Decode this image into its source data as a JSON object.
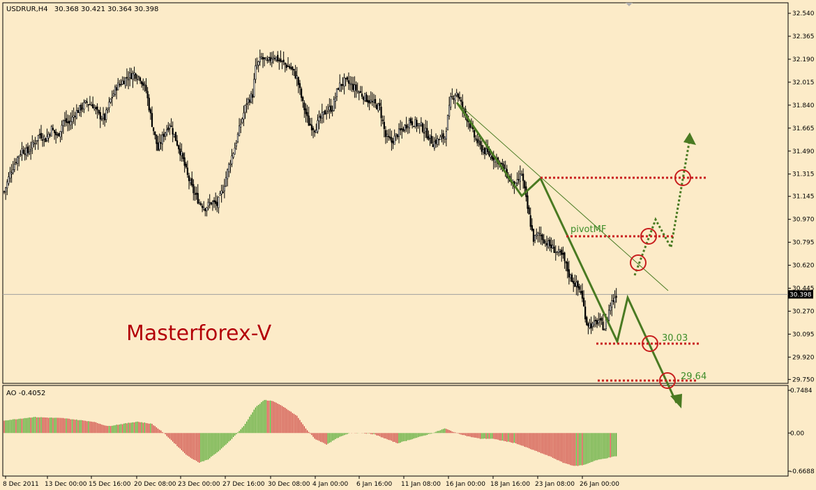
{
  "header": {
    "symbol": "USDRUR,H4",
    "ohlc": "30.368 30.421 30.364 30.398"
  },
  "watermark": "Masterforex-V",
  "colors": {
    "background": "#FCEBC8",
    "grid": "#C8C8C8",
    "bull_candle": "#FFFFFF",
    "bear_candle": "#000000",
    "wick": "#000000",
    "watermark": "#B40000",
    "level_line": "#C81E1E",
    "circle": "#C81E1E",
    "projection": "#4A7A22",
    "trendline": "#4A7A22",
    "label_green": "#3C8C28",
    "ao_up": "#3CA01E",
    "ao_down": "#C83232",
    "price_tag_bg": "#000000",
    "price_tag_fg": "#FFFFFF"
  },
  "price_axis": {
    "ticks": [
      "32.540",
      "32.365",
      "32.190",
      "32.015",
      "31.840",
      "31.665",
      "31.490",
      "31.315",
      "31.145",
      "30.970",
      "30.795",
      "30.620",
      "30.445",
      "30.270",
      "30.095",
      "29.920",
      "29.750"
    ],
    "current": "30.398"
  },
  "time_axis": {
    "labels": [
      "8 Dec 2011",
      "13 Dec 00:00",
      "15 Dec 16:00",
      "20 Dec 08:00",
      "23 Dec 00:00",
      "27 Dec 16:00",
      "30 Dec 08:00",
      "4 Jan 00:00",
      "6 Jan 16:00",
      "11 Jan 08:00",
      "16 Jan 00:00",
      "18 Jan 16:00",
      "23 Jan 08:00",
      "26 Jan 00:00"
    ]
  },
  "indicator": {
    "label": "AO -0.4052",
    "ticks": [
      "0.7484",
      "0.00",
      "-0.6688"
    ]
  },
  "annotations": {
    "pivot": "pivotMF",
    "level1": "30.03",
    "level2": "29.64"
  },
  "chart_data": {
    "type": "candlestick",
    "symbol": "USDRUR",
    "timeframe": "H4",
    "ylim": [
      29.72,
      32.62
    ],
    "close_path": [
      [
        0,
        31.18
      ],
      [
        4,
        31.32
      ],
      [
        8,
        31.42
      ],
      [
        12,
        31.5
      ],
      [
        16,
        31.48
      ],
      [
        20,
        31.55
      ],
      [
        24,
        31.62
      ],
      [
        28,
        31.58
      ],
      [
        32,
        31.66
      ],
      [
        36,
        31.6
      ],
      [
        40,
        31.72
      ],
      [
        44,
        31.7
      ],
      [
        48,
        31.78
      ],
      [
        52,
        31.82
      ],
      [
        56,
        31.86
      ],
      [
        60,
        31.84
      ],
      [
        64,
        31.76
      ],
      [
        68,
        31.74
      ],
      [
        72,
        31.88
      ],
      [
        76,
        31.98
      ],
      [
        80,
        32.02
      ],
      [
        84,
        32.06
      ],
      [
        88,
        32.08
      ],
      [
        92,
        32.05
      ],
      [
        96,
        31.95
      ],
      [
        100,
        31.7
      ],
      [
        104,
        31.5
      ],
      [
        108,
        31.62
      ],
      [
        112,
        31.7
      ],
      [
        116,
        31.58
      ],
      [
        120,
        31.46
      ],
      [
        124,
        31.3
      ],
      [
        128,
        31.18
      ],
      [
        132,
        31.1
      ],
      [
        136,
        31.06
      ],
      [
        140,
        31.1
      ],
      [
        144,
        31.08
      ],
      [
        148,
        31.2
      ],
      [
        152,
        31.38
      ],
      [
        156,
        31.52
      ],
      [
        160,
        31.7
      ],
      [
        164,
        31.86
      ],
      [
        168,
        31.92
      ],
      [
        170,
        32.12
      ],
      [
        174,
        32.2
      ],
      [
        178,
        32.16
      ],
      [
        182,
        32.22
      ],
      [
        186,
        32.18
      ],
      [
        190,
        32.15
      ],
      [
        194,
        32.12
      ],
      [
        198,
        32.05
      ],
      [
        202,
        31.85
      ],
      [
        206,
        31.7
      ],
      [
        210,
        31.66
      ],
      [
        214,
        31.74
      ],
      [
        218,
        31.8
      ],
      [
        222,
        31.82
      ],
      [
        226,
        31.98
      ],
      [
        230,
        32.02
      ],
      [
        234,
        32.0
      ],
      [
        238,
        31.96
      ],
      [
        242,
        31.92
      ],
      [
        246,
        31.88
      ],
      [
        250,
        31.85
      ],
      [
        254,
        31.82
      ],
      [
        258,
        31.6
      ],
      [
        262,
        31.56
      ],
      [
        266,
        31.62
      ],
      [
        270,
        31.66
      ],
      [
        274,
        31.72
      ],
      [
        278,
        31.7
      ],
      [
        282,
        31.68
      ],
      [
        286,
        31.62
      ],
      [
        290,
        31.55
      ],
      [
        294,
        31.58
      ],
      [
        298,
        31.6
      ],
      [
        302,
        31.88
      ],
      [
        306,
        31.94
      ],
      [
        310,
        31.82
      ],
      [
        314,
        31.72
      ],
      [
        318,
        31.6
      ],
      [
        322,
        31.52
      ],
      [
        326,
        31.48
      ],
      [
        330,
        31.45
      ],
      [
        334,
        31.42
      ],
      [
        338,
        31.35
      ],
      [
        342,
        31.27
      ],
      [
        346,
        31.22
      ],
      [
        350,
        31.32
      ],
      [
        354,
        31.05
      ],
      [
        358,
        30.82
      ],
      [
        362,
        30.86
      ],
      [
        366,
        30.8
      ],
      [
        370,
        30.76
      ],
      [
        374,
        30.72
      ],
      [
        378,
        30.68
      ],
      [
        382,
        30.55
      ],
      [
        386,
        30.48
      ],
      [
        390,
        30.42
      ],
      [
        394,
        30.18
      ],
      [
        398,
        30.16
      ],
      [
        402,
        30.2
      ],
      [
        406,
        30.14
      ],
      [
        410,
        30.32
      ],
      [
        414,
        30.398
      ]
    ],
    "notable_levels": {
      "pivotMF": 30.89,
      "target_1": 30.03,
      "target_2": 29.64,
      "resistance": 31.34
    },
    "indicator": {
      "name": "AO",
      "value": -0.4052,
      "ylim": [
        -0.6688,
        0.7484
      ],
      "path": [
        [
          0,
          0.22
        ],
        [
          20,
          0.28
        ],
        [
          40,
          0.26
        ],
        [
          60,
          0.2
        ],
        [
          70,
          0.12
        ],
        [
          80,
          0.16
        ],
        [
          90,
          0.2
        ],
        [
          100,
          0.16
        ],
        [
          108,
          0.0
        ],
        [
          116,
          -0.2
        ],
        [
          124,
          -0.4
        ],
        [
          132,
          -0.52
        ],
        [
          138,
          -0.46
        ],
        [
          146,
          -0.3
        ],
        [
          154,
          -0.1
        ],
        [
          162,
          0.12
        ],
        [
          170,
          0.45
        ],
        [
          176,
          0.58
        ],
        [
          182,
          0.56
        ],
        [
          190,
          0.44
        ],
        [
          198,
          0.3
        ],
        [
          204,
          0.08
        ],
        [
          210,
          -0.1
        ],
        [
          218,
          -0.2
        ],
        [
          226,
          -0.08
        ],
        [
          234,
          0.0
        ],
        [
          242,
          0.0
        ],
        [
          250,
          -0.02
        ],
        [
          258,
          -0.1
        ],
        [
          266,
          -0.18
        ],
        [
          274,
          -0.12
        ],
        [
          282,
          -0.06
        ],
        [
          290,
          0.0
        ],
        [
          298,
          0.08
        ],
        [
          306,
          0.0
        ],
        [
          314,
          -0.06
        ],
        [
          322,
          -0.1
        ],
        [
          330,
          -0.1
        ],
        [
          338,
          -0.14
        ],
        [
          346,
          -0.18
        ],
        [
          354,
          -0.26
        ],
        [
          362,
          -0.34
        ],
        [
          370,
          -0.42
        ],
        [
          378,
          -0.52
        ],
        [
          386,
          -0.58
        ],
        [
          392,
          -0.56
        ],
        [
          400,
          -0.48
        ],
        [
          414,
          -0.4052
        ]
      ]
    }
  }
}
